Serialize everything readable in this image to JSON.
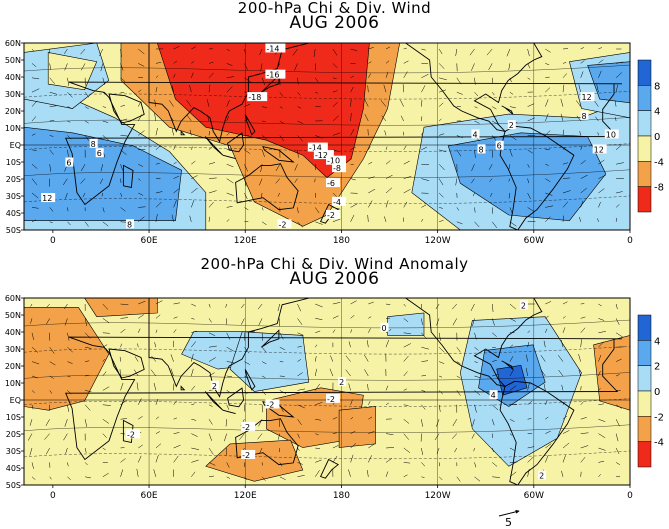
{
  "chart_data": [
    {
      "type": "heatmap",
      "title": "200-hPa Chi & Div. Wind",
      "subtitle": "AUG 2006",
      "x_tick_labels": [
        "0",
        "60E",
        "120E",
        "180",
        "120W",
        "60W",
        "0"
      ],
      "y_tick_labels": [
        "60N",
        "50N",
        "40N",
        "30N",
        "20N",
        "10N",
        "EQ",
        "10S",
        "20S",
        "30S",
        "40S",
        "50S"
      ],
      "colorbar": {
        "labels": [
          "8",
          "4",
          "0",
          "-4",
          "-8"
        ],
        "colors": [
          "#2166d4",
          "#5aa8ee",
          "#a9dcf5",
          "#f7f3a6",
          "#f3a24a",
          "#f02a1a"
        ]
      },
      "contour_labels": [
        "-14",
        "-16",
        "-18",
        "-14",
        "-12",
        "-10",
        "-8",
        "-6",
        "-4",
        "-2",
        "-2",
        "8",
        "6",
        "12",
        "6",
        "8",
        "2",
        "4",
        "10",
        "12",
        "6",
        "8",
        "12",
        "8"
      ]
    },
    {
      "type": "heatmap",
      "title": "200-hPa Chi & Div. Wind Anomaly",
      "subtitle": "AUG 2006",
      "x_tick_labels": [
        "0",
        "60E",
        "120E",
        "180",
        "120W",
        "60W",
        "0"
      ],
      "y_tick_labels": [
        "60N",
        "50N",
        "40N",
        "30N",
        "20N",
        "10N",
        "EQ",
        "10S",
        "20S",
        "30S",
        "40S",
        "50S"
      ],
      "colorbar": {
        "labels": [
          "4",
          "2",
          "0",
          "-2",
          "-4"
        ],
        "colors": [
          "#2166d4",
          "#5aa8ee",
          "#a9dcf5",
          "#f7f3a6",
          "#f3a24a",
          "#f02a1a"
        ]
      },
      "contour_labels": [
        "-2",
        "2",
        "-2",
        "-2",
        "-2",
        "0",
        "2",
        "-2",
        "2",
        "4",
        "2"
      ]
    }
  ],
  "vector_scale_label": "5"
}
